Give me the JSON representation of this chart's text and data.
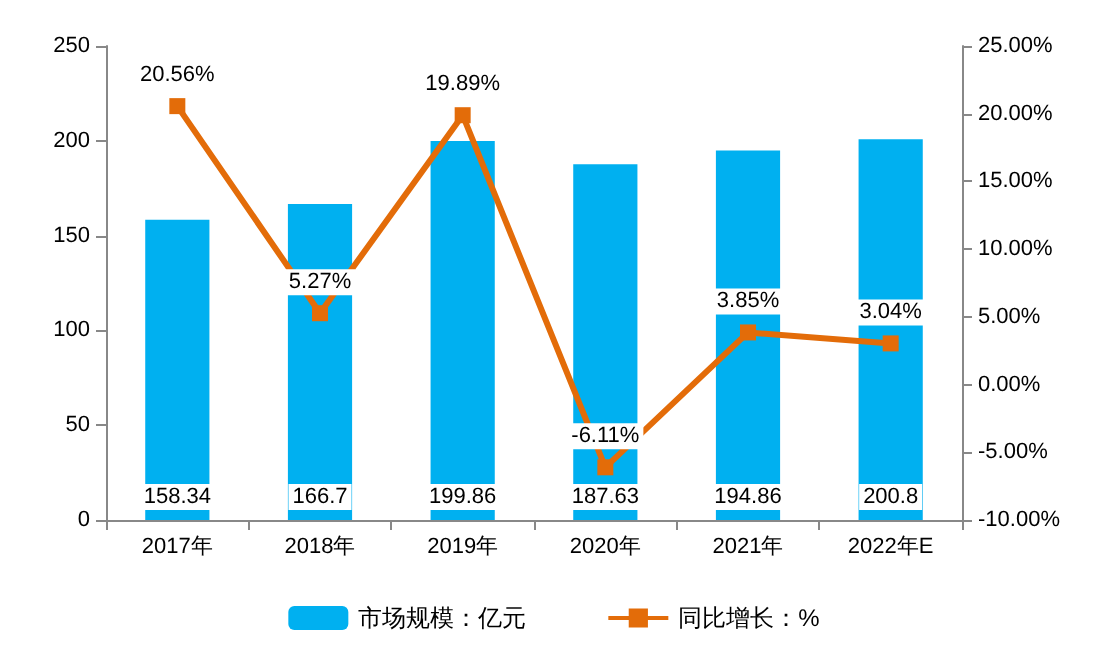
{
  "chart_data": {
    "type": "bar",
    "categories": [
      "2017年",
      "2018年",
      "2019年",
      "2020年",
      "2021年",
      "2022年E"
    ],
    "series": [
      {
        "name": "市场规模：亿元",
        "type": "bar",
        "color": "#00b0f0",
        "values": [
          158.34,
          166.7,
          199.86,
          187.63,
          194.86,
          200.8
        ],
        "value_labels": [
          "158.34",
          "166.7",
          "199.86",
          "187.63",
          "194.86",
          "200.8"
        ]
      },
      {
        "name": "同比增长：%",
        "type": "line",
        "axis": "y2",
        "color": "#e36c09",
        "marker": "square",
        "values": [
          20.56,
          5.27,
          19.89,
          -6.11,
          3.85,
          3.04
        ],
        "value_labels": [
          "20.56%",
          "5.27%",
          "19.89%",
          "-6.11%",
          "3.85%",
          "3.04%"
        ]
      }
    ],
    "ylim": [
      0,
      250
    ],
    "yticks": [
      0,
      50,
      100,
      150,
      200,
      250
    ],
    "y2lim": [
      -10,
      25
    ],
    "y2ticks": [
      {
        "value": -10,
        "label": "-10.00%"
      },
      {
        "value": -5,
        "label": "-5.00%"
      },
      {
        "value": 0,
        "label": "0.00%"
      },
      {
        "value": 5,
        "label": "5.00%"
      },
      {
        "value": 10,
        "label": "10.00%"
      },
      {
        "value": 15,
        "label": "15.00%"
      },
      {
        "value": 20,
        "label": "20.00%"
      },
      {
        "value": 25,
        "label": "25.00%"
      }
    ],
    "legend": "bottom",
    "grid": false
  }
}
